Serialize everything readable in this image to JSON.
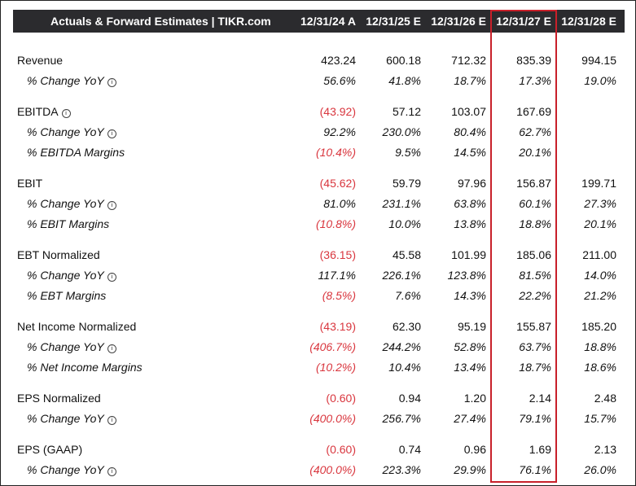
{
  "header": {
    "title": "Actuals & Forward Estimates | TIKR.com",
    "columns": [
      "12/31/24 A",
      "12/31/25 E",
      "12/31/26 E",
      "12/31/27 E",
      "12/31/28 E"
    ]
  },
  "rows": [
    {
      "label": "Revenue",
      "sub": false,
      "info": false,
      "values": [
        "423.24",
        "600.18",
        "712.32",
        "835.39",
        "994.15"
      ]
    },
    {
      "label": "% Change YoY",
      "sub": true,
      "info": true,
      "values": [
        "56.6%",
        "41.8%",
        "18.7%",
        "17.3%",
        "19.0%"
      ]
    },
    {
      "label": "EBITDA",
      "sub": false,
      "info": true,
      "values": [
        "(43.92)",
        "57.12",
        "103.07",
        "167.69",
        ""
      ]
    },
    {
      "label": "% Change YoY",
      "sub": true,
      "info": true,
      "values": [
        "92.2%",
        "230.0%",
        "80.4%",
        "62.7%",
        ""
      ]
    },
    {
      "label": "% EBITDA Margins",
      "sub": true,
      "info": false,
      "values": [
        "(10.4%)",
        "9.5%",
        "14.5%",
        "20.1%",
        ""
      ]
    },
    {
      "label": "EBIT",
      "sub": false,
      "info": false,
      "values": [
        "(45.62)",
        "59.79",
        "97.96",
        "156.87",
        "199.71"
      ]
    },
    {
      "label": "% Change YoY",
      "sub": true,
      "info": true,
      "values": [
        "81.0%",
        "231.1%",
        "63.8%",
        "60.1%",
        "27.3%"
      ]
    },
    {
      "label": "% EBIT Margins",
      "sub": true,
      "info": false,
      "values": [
        "(10.8%)",
        "10.0%",
        "13.8%",
        "18.8%",
        "20.1%"
      ]
    },
    {
      "label": "EBT Normalized",
      "sub": false,
      "info": false,
      "values": [
        "(36.15)",
        "45.58",
        "101.99",
        "185.06",
        "211.00"
      ]
    },
    {
      "label": "% Change YoY",
      "sub": true,
      "info": true,
      "values": [
        "117.1%",
        "226.1%",
        "123.8%",
        "81.5%",
        "14.0%"
      ]
    },
    {
      "label": "% EBT Margins",
      "sub": true,
      "info": false,
      "values": [
        "(8.5%)",
        "7.6%",
        "14.3%",
        "22.2%",
        "21.2%"
      ]
    },
    {
      "label": "Net Income Normalized",
      "sub": false,
      "info": false,
      "values": [
        "(43.19)",
        "62.30",
        "95.19",
        "155.87",
        "185.20"
      ]
    },
    {
      "label": "% Change YoY",
      "sub": true,
      "info": true,
      "values": [
        "(406.7%)",
        "244.2%",
        "52.8%",
        "63.7%",
        "18.8%"
      ]
    },
    {
      "label": "% Net Income Margins",
      "sub": true,
      "info": false,
      "values": [
        "(10.2%)",
        "10.4%",
        "13.4%",
        "18.7%",
        "18.6%"
      ]
    },
    {
      "label": "EPS Normalized",
      "sub": false,
      "info": false,
      "values": [
        "(0.60)",
        "0.94",
        "1.20",
        "2.14",
        "2.48"
      ]
    },
    {
      "label": "% Change YoY",
      "sub": true,
      "info": true,
      "values": [
        "(400.0%)",
        "256.7%",
        "27.4%",
        "79.1%",
        "15.7%"
      ]
    },
    {
      "label": "EPS (GAAP)",
      "sub": false,
      "info": false,
      "values": [
        "(0.60)",
        "0.74",
        "0.96",
        "1.69",
        "2.13"
      ]
    },
    {
      "label": "% Change YoY",
      "sub": true,
      "info": true,
      "values": [
        "(400.0%)",
        "223.3%",
        "29.9%",
        "76.1%",
        "26.0%"
      ]
    }
  ],
  "colors": {
    "header_bg": "#2b2b2e",
    "negative": "#d9363e",
    "highlight": "#c8202a"
  },
  "info_icon": "info-circle-icon"
}
